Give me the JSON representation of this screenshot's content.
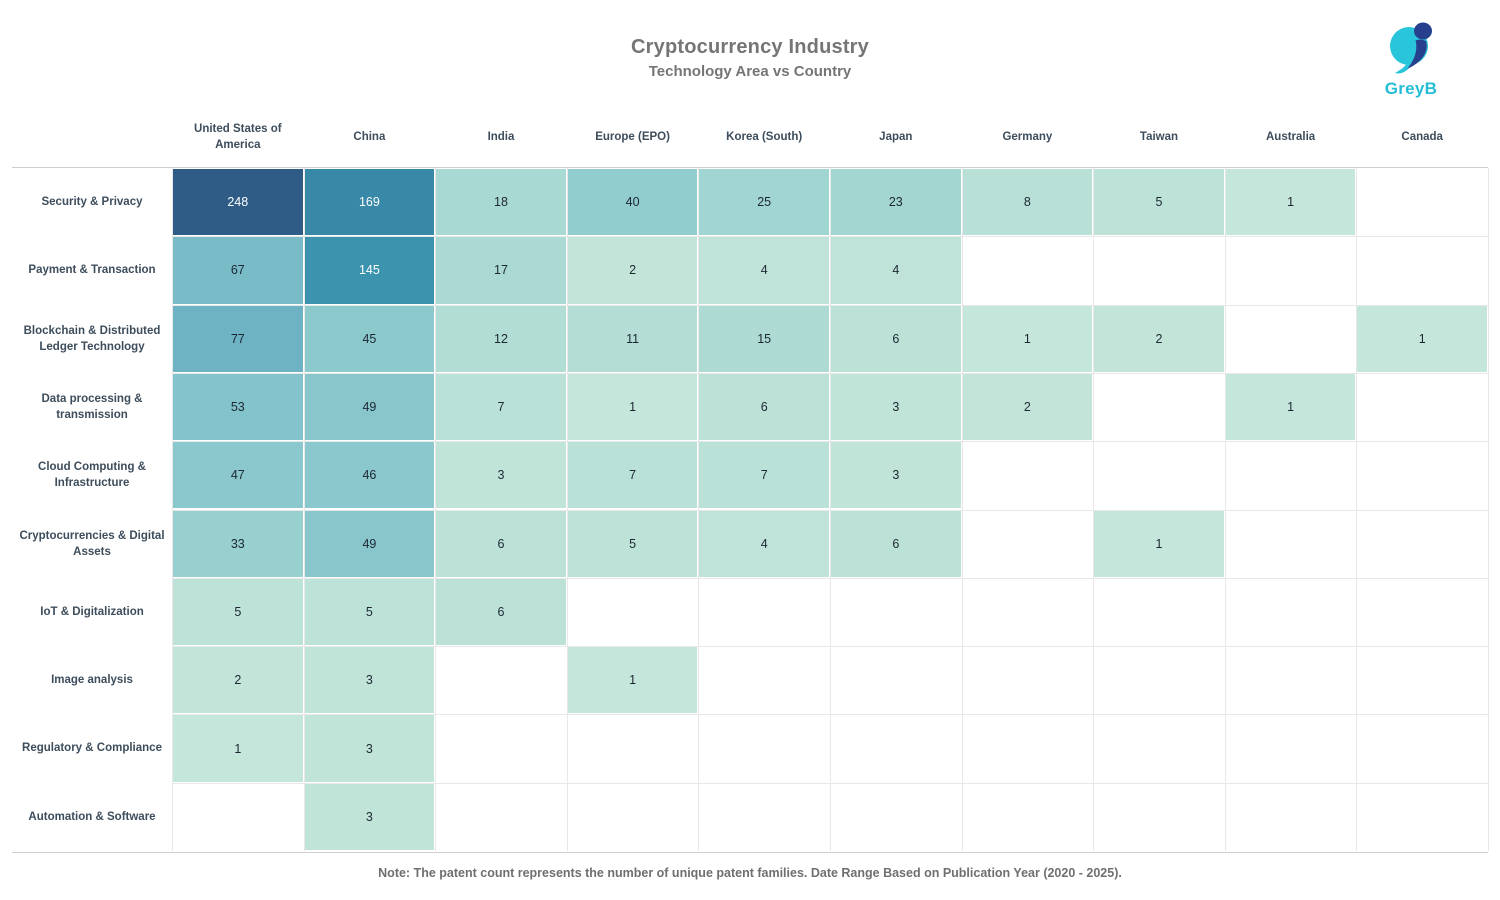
{
  "title": "Cryptocurrency Industry",
  "subtitle": "Technology Area vs Country",
  "logo": {
    "text": "GreyB",
    "cyan": "#29c5da",
    "navy": "#27408e"
  },
  "note": "Note: The patent count represents the number of unique patent families. Date Range Based on Publication Year (2020 - 2025).",
  "colors": {
    "title_text": "#757575",
    "header_text": "#3d4d5c",
    "note_text": "#6f6f6f",
    "cell_text_dark": "#1c2733",
    "cell_text_light": "#ffffff",
    "gridline": "#e8e8e8",
    "rule": "#cfcfcf"
  },
  "chart_data": {
    "type": "heatmap",
    "title": "Cryptocurrency Industry",
    "subtitle": "Technology Area vs Country",
    "columns": [
      "United States of America",
      "China",
      "India",
      "Europe (EPO)",
      "Korea (South)",
      "Japan",
      "Germany",
      "Taiwan",
      "Australia",
      "Canada"
    ],
    "rows": [
      "Security & Privacy",
      "Payment & Transaction",
      "Blockchain & Distributed Ledger Technology",
      "Data processing & transmission",
      "Cloud Computing & Infrastructure",
      "Cryptocurrencies & Digital Assets",
      "IoT & Digitalization",
      "Image analysis",
      "Regulatory & Compliance",
      "Automation & Software"
    ],
    "values": [
      [
        248,
        169,
        18,
        40,
        25,
        23,
        8,
        5,
        1,
        null
      ],
      [
        67,
        145,
        17,
        2,
        4,
        4,
        null,
        null,
        null,
        null
      ],
      [
        77,
        45,
        12,
        11,
        15,
        6,
        1,
        2,
        null,
        1
      ],
      [
        53,
        49,
        7,
        1,
        6,
        3,
        2,
        null,
        1,
        null
      ],
      [
        47,
        46,
        3,
        7,
        7,
        3,
        null,
        null,
        null,
        null
      ],
      [
        33,
        49,
        6,
        5,
        4,
        6,
        null,
        1,
        null,
        null
      ],
      [
        5,
        5,
        6,
        null,
        null,
        null,
        null,
        null,
        null,
        null
      ],
      [
        2,
        3,
        null,
        1,
        null,
        null,
        null,
        null,
        null,
        null
      ],
      [
        1,
        3,
        null,
        null,
        null,
        null,
        null,
        null,
        null,
        null
      ],
      [
        null,
        3,
        null,
        null,
        null,
        null,
        null,
        null,
        null,
        null
      ]
    ],
    "color_scale": {
      "stops": [
        [
          1,
          "#c5e6da"
        ],
        [
          10,
          "#b4ded5"
        ],
        [
          20,
          "#a6d8d2"
        ],
        [
          33,
          "#98d0cf"
        ],
        [
          45,
          "#8cc9cd"
        ],
        [
          53,
          "#83c3cb"
        ],
        [
          67,
          "#79bcc8"
        ],
        [
          77,
          "#6db3c4"
        ],
        [
          145,
          "#3b93ae"
        ],
        [
          169,
          "#3888a7"
        ],
        [
          248,
          "#2e5c87"
        ]
      ],
      "light_text_threshold": 100
    },
    "legend": "none",
    "grid": true
  }
}
